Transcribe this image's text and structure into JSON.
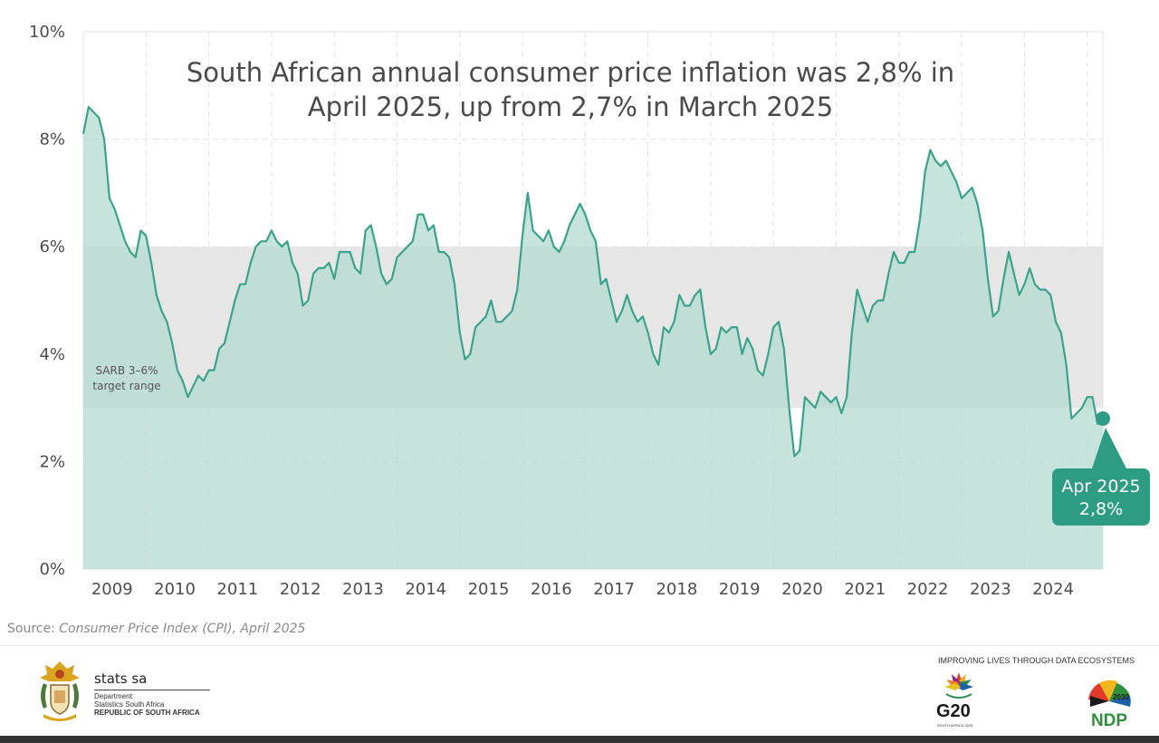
{
  "chart_data": {
    "type": "area",
    "title_lines": [
      "South African annual consumer price inflation was 2,8% in",
      "April 2025, up from 2,7% in March 2025"
    ],
    "ylim": [
      0,
      10
    ],
    "y_ticks": [
      "0%",
      "2%",
      "4%",
      "6%",
      "8%",
      "10%"
    ],
    "x_ticks": [
      "2009",
      "2010",
      "2011",
      "2012",
      "2013",
      "2014",
      "2015",
      "2016",
      "2017",
      "2018",
      "2019",
      "2020",
      "2021",
      "2022",
      "2023",
      "2024"
    ],
    "x_start": "2009-01",
    "x_end": "2025-04",
    "target_band": {
      "low": 3,
      "high": 6,
      "label_lines": [
        "SARB 3–6%",
        "target range"
      ]
    },
    "series": [
      {
        "color": "#3aa38a",
        "values": [
          8.1,
          8.6,
          8.5,
          8.4,
          8.0,
          6.9,
          6.7,
          6.4,
          6.1,
          5.9,
          5.8,
          6.3,
          6.2,
          5.7,
          5.1,
          4.8,
          4.6,
          4.2,
          3.7,
          3.5,
          3.2,
          3.4,
          3.6,
          3.5,
          3.7,
          3.7,
          4.1,
          4.2,
          4.6,
          5.0,
          5.3,
          5.3,
          5.7,
          6.0,
          6.1,
          6.1,
          6.3,
          6.1,
          6.0,
          6.1,
          5.7,
          5.5,
          4.9,
          5.0,
          5.5,
          5.6,
          5.6,
          5.7,
          5.4,
          5.9,
          5.9,
          5.9,
          5.6,
          5.5,
          6.3,
          6.4,
          6.0,
          5.5,
          5.3,
          5.4,
          5.8,
          5.9,
          6.0,
          6.1,
          6.6,
          6.6,
          6.3,
          6.4,
          5.9,
          5.9,
          5.8,
          5.3,
          4.4,
          3.9,
          4.0,
          4.5,
          4.6,
          4.7,
          5.0,
          4.6,
          4.6,
          4.7,
          4.8,
          5.2,
          6.2,
          7.0,
          6.3,
          6.2,
          6.1,
          6.3,
          6.0,
          5.9,
          6.1,
          6.4,
          6.6,
          6.8,
          6.6,
          6.3,
          6.1,
          5.3,
          5.4,
          5.0,
          4.6,
          4.8,
          5.1,
          4.8,
          4.6,
          4.7,
          4.4,
          4.0,
          3.8,
          4.5,
          4.4,
          4.6,
          5.1,
          4.9,
          4.9,
          5.1,
          5.2,
          4.5,
          4.0,
          4.1,
          4.5,
          4.4,
          4.5,
          4.5,
          4.0,
          4.3,
          4.1,
          3.7,
          3.6,
          4.0,
          4.5,
          4.6,
          4.1,
          3.0,
          2.1,
          2.2,
          3.2,
          3.1,
          3.0,
          3.3,
          3.2,
          3.1,
          3.2,
          2.9,
          3.2,
          4.4,
          5.2,
          4.9,
          4.6,
          4.9,
          5.0,
          5.0,
          5.5,
          5.9,
          5.7,
          5.7,
          5.9,
          5.9,
          6.5,
          7.4,
          7.8,
          7.6,
          7.5,
          7.6,
          7.4,
          7.2,
          6.9,
          7.0,
          7.1,
          6.8,
          6.3,
          5.4,
          4.7,
          4.8,
          5.4,
          5.9,
          5.5,
          5.1,
          5.3,
          5.6,
          5.3,
          5.2,
          5.2,
          5.1,
          4.6,
          4.4,
          3.8,
          2.8,
          2.9,
          3.0,
          3.2,
          3.2,
          2.7,
          2.8
        ]
      }
    ],
    "annotation": {
      "lines": [
        "Apr 2025",
        "2,8%"
      ],
      "value": 2.8
    },
    "colors": {
      "line": "#3aa38a",
      "fill": "#b4dbd0",
      "band": "#e6e6e6",
      "callout": "#2e9c82"
    }
  },
  "source": {
    "prefix": "Source: ",
    "text": "Consumer Price Index (CPI), April 2025"
  },
  "footer": {
    "org_name": "stats sa",
    "org_lines": [
      "Department:",
      "Statistics South Africa",
      "REPUBLIC OF SOUTH AFRICA"
    ],
    "tagline": "IMPROVING LIVES THROUGH DATA ECOSYSTEMS",
    "g20_label": "G20",
    "g20_sub": "SOUTH AFRICA 2025",
    "ndp_label": "NDP",
    "ndp_year": "2030",
    "icons": [
      "coat-of-arms-icon",
      "g20-logo-icon",
      "ndp-logo-icon"
    ]
  }
}
